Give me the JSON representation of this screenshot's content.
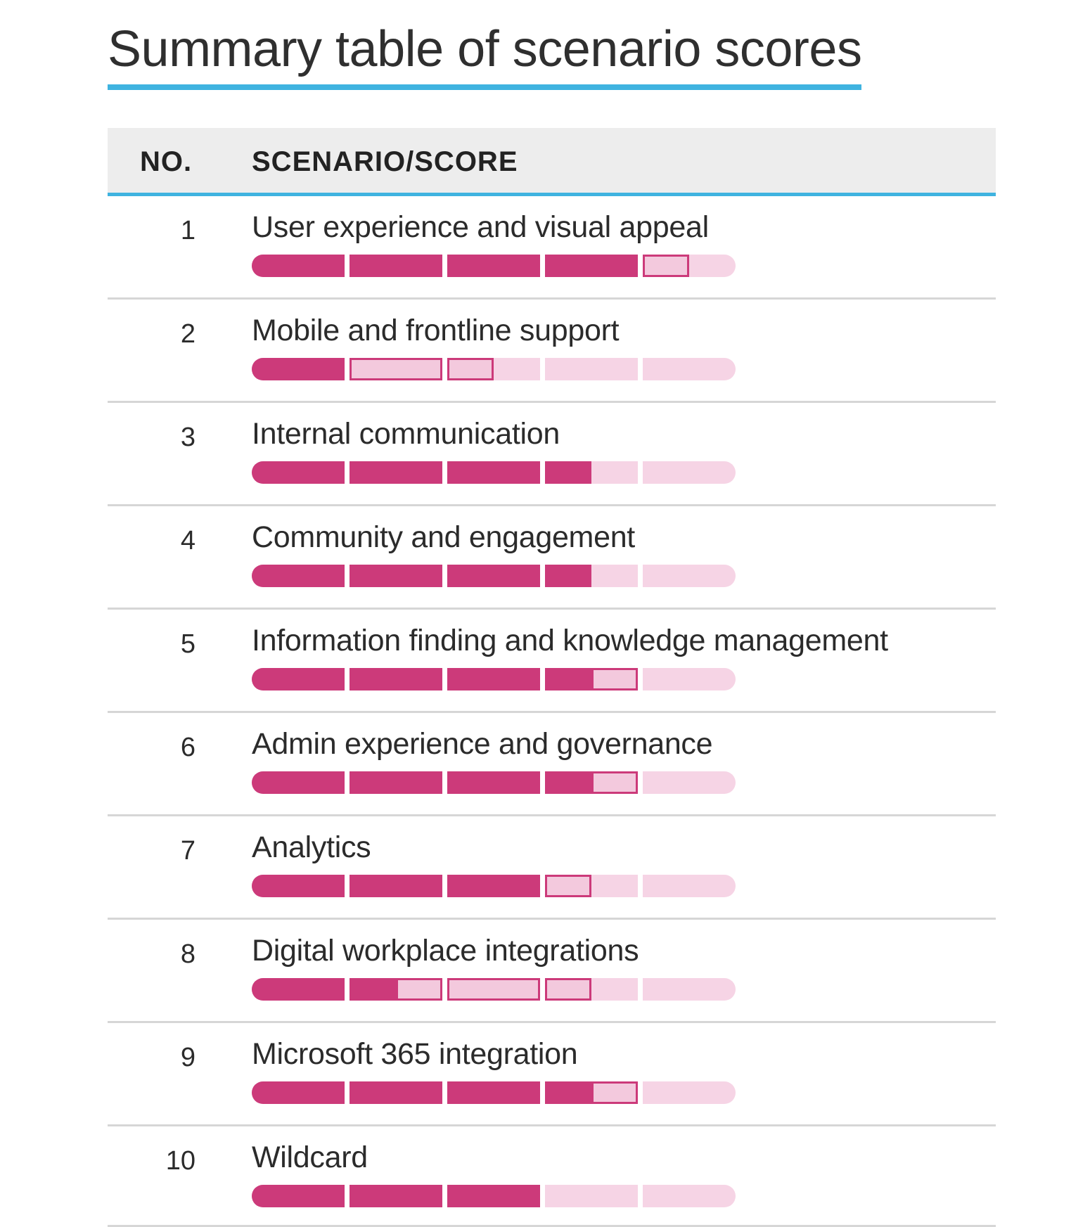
{
  "title": "Summary table of scenario scores",
  "header": {
    "no": "NO.",
    "scenario": "SCENARIO/SCORE"
  },
  "colors": {
    "accent": "#3fb3e0",
    "bar_fill": "#cc3a7a",
    "bar_empty": "#f6d4e5"
  },
  "chart_data": {
    "type": "bar",
    "title": "Summary table of scenario scores",
    "max_score": 5,
    "rows": [
      {
        "no": "1",
        "scenario": "User experience and visual appeal",
        "score": 4,
        "partial": 0.5
      },
      {
        "no": "2",
        "scenario": "Mobile and frontline support",
        "score": 1,
        "partial": 1.5
      },
      {
        "no": "3",
        "scenario": "Internal communication",
        "score": 3.5,
        "partial": 0
      },
      {
        "no": "4",
        "scenario": "Community and engagement",
        "score": 3.5,
        "partial": 0
      },
      {
        "no": "5",
        "scenario": "Information finding and knowledge management",
        "score": 3.5,
        "partial": 0.5
      },
      {
        "no": "6",
        "scenario": "Admin experience and governance",
        "score": 3.5,
        "partial": 0.5
      },
      {
        "no": "7",
        "scenario": "Analytics",
        "score": 3,
        "partial": 0.5
      },
      {
        "no": "8",
        "scenario": "Digital workplace integrations",
        "score": 1.5,
        "partial": 2
      },
      {
        "no": "9",
        "scenario": "Microsoft 365 integration",
        "score": 3.5,
        "partial": 0.5
      },
      {
        "no": "10",
        "scenario": "Wildcard",
        "score": 3,
        "partial": 0
      }
    ]
  }
}
